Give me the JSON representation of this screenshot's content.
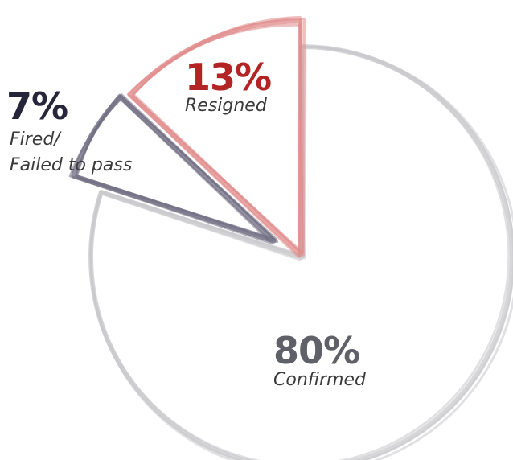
{
  "chart_data": {
    "type": "pie",
    "style": "exploded, hand-drawn outline",
    "slices": [
      {
        "label": "Confirmed",
        "value": 80,
        "value_label": "80%",
        "color": "#5f6068",
        "stroke": "#c9c9cc"
      },
      {
        "label": "Fired/",
        "label_line2": "Failed to pass",
        "value": 7,
        "value_label": "7%",
        "color": "#27253a",
        "stroke": "#6e6b80"
      },
      {
        "label": "Resigned",
        "value": 13,
        "value_label": "13%",
        "color": "#b32425",
        "stroke": "#e08a8a"
      }
    ]
  }
}
